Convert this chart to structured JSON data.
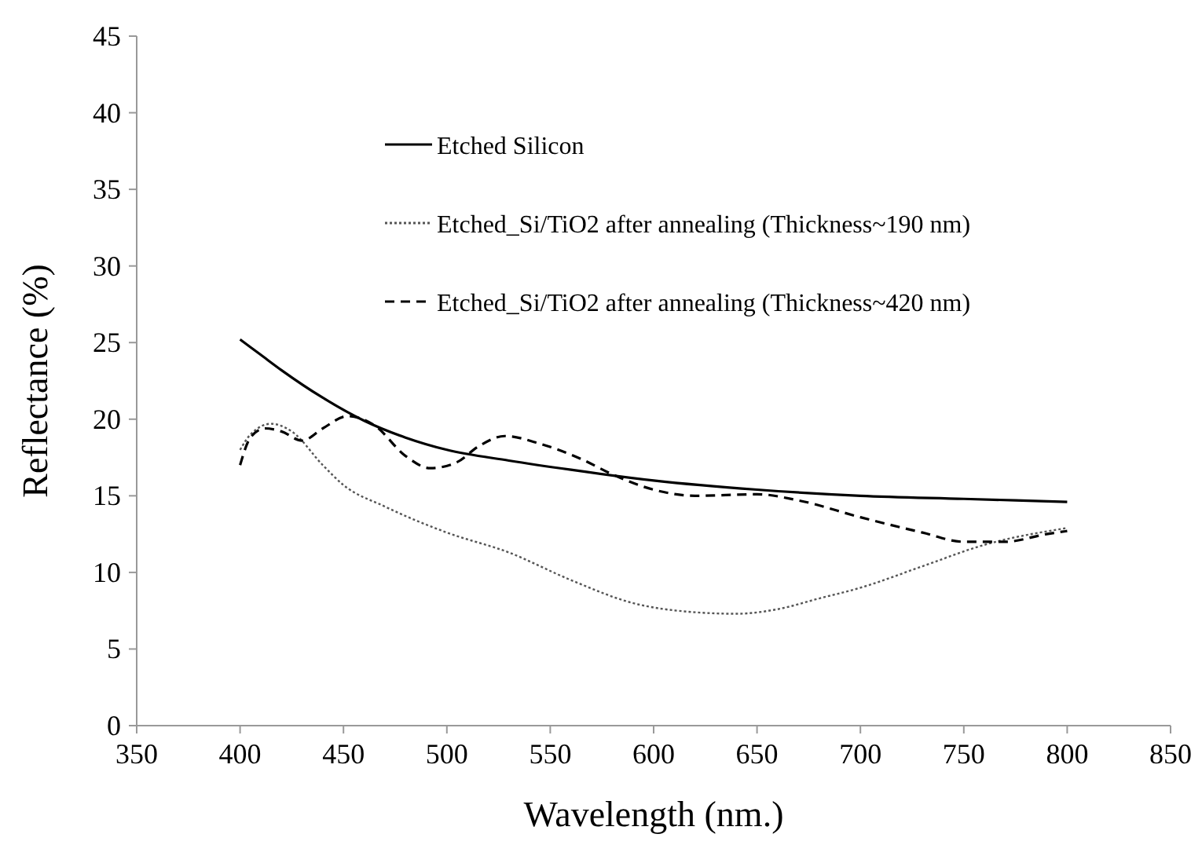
{
  "chart_data": {
    "type": "line",
    "xlabel": "Wavelength (nm.)",
    "ylabel": "Reflectance (%)",
    "xlim": [
      350,
      850
    ],
    "xticks": [
      350,
      400,
      450,
      500,
      550,
      600,
      650,
      700,
      750,
      800,
      850
    ],
    "ylim": [
      0,
      45
    ],
    "yticks": [
      0,
      5,
      10,
      15,
      20,
      25,
      30,
      35,
      40,
      45
    ],
    "grid": false,
    "legend": "top",
    "marker": "none",
    "series": [
      {
        "name": "Etched Silicon",
        "color": "#000000",
        "line_style": "solid",
        "x": [
          400,
          410,
          420,
          440,
          460,
          480,
          500,
          530,
          560,
          600,
          650,
          700,
          750,
          800
        ],
        "values": [
          25.2,
          24.2,
          23.2,
          21.4,
          19.9,
          18.8,
          18.0,
          17.3,
          16.7,
          16.0,
          15.4,
          15.0,
          14.8,
          14.6
        ]
      },
      {
        "name": "Etched_Si/TiO2 after annealing (Thickness~190 nm)",
        "color": "#555555",
        "line_style": "dotted",
        "x": [
          400,
          405,
          415,
          425,
          440,
          450,
          470,
          500,
          530,
          560,
          590,
          620,
          640,
          660,
          680,
          700,
          730,
          760,
          800
        ],
        "values": [
          18.0,
          19.0,
          19.7,
          19.2,
          17.0,
          15.7,
          14.3,
          12.6,
          11.3,
          9.5,
          8.0,
          7.4,
          7.3,
          7.6,
          8.3,
          9.0,
          10.4,
          11.8,
          12.9
        ]
      },
      {
        "name": "Etched_Si/TiO2 after annealing (Thickness~420 nm)",
        "color": "#000000",
        "line_style": "dashed",
        "x": [
          400,
          405,
          412,
          420,
          430,
          440,
          452,
          465,
          480,
          492,
          505,
          515,
          528,
          545,
          565,
          580,
          600,
          620,
          650,
          670,
          700,
          730,
          750,
          770,
          790,
          800
        ],
        "values": [
          17.0,
          18.8,
          19.4,
          19.2,
          18.6,
          19.4,
          20.2,
          19.6,
          17.6,
          16.8,
          17.2,
          18.2,
          18.9,
          18.4,
          17.4,
          16.4,
          15.4,
          15.0,
          15.1,
          14.7,
          13.6,
          12.6,
          12.0,
          12.0,
          12.5,
          12.7
        ]
      }
    ]
  }
}
